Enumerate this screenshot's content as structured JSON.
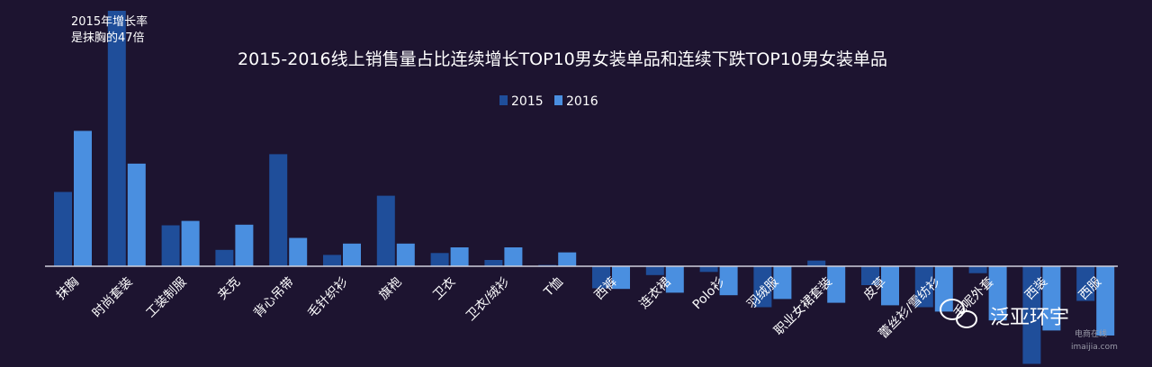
{
  "chart_data": {
    "type": "bar",
    "title": "2015-2016线上销售量占比连续增长TOP10男女装单品和连续下跌TOP10男女装单品",
    "annotation_lines": [
      "2015年增长率",
      "是抹胸的47倍"
    ],
    "legend_position": "top-center",
    "grid": false,
    "ylim": [
      -1.6,
      4.0
    ],
    "categories": [
      "抹胸",
      "时尚套装",
      "工装制服",
      "夹克",
      "背心吊带",
      "毛针织衫",
      "旗袍",
      "卫衣",
      "卫衣/绒衫",
      "T恤",
      "西裤",
      "连衣裙",
      "Polo衫",
      "羽绒服",
      "职业女裙套装",
      "皮草",
      "蕾丝衫/雪纺衫",
      "毛呢外套",
      "西装",
      "西服"
    ],
    "series": [
      {
        "name": "2015",
        "color": "#1f4e9a",
        "values": [
          1.18,
          4.1,
          0.65,
          0.26,
          1.78,
          0.18,
          1.12,
          0.21,
          0.1,
          0.02,
          -0.35,
          -0.14,
          -0.09,
          -0.65,
          0.09,
          -0.3,
          -0.65,
          -0.11,
          -1.55,
          -0.55
        ]
      },
      {
        "name": "2016",
        "color": "#4a8fe0",
        "values": [
          2.15,
          1.63,
          0.72,
          0.66,
          0.45,
          0.36,
          0.36,
          0.3,
          0.3,
          0.22,
          -0.36,
          -0.42,
          -0.46,
          -0.52,
          -0.58,
          -0.62,
          -0.72,
          -0.86,
          -1.02,
          -1.1
        ]
      }
    ]
  },
  "watermark": {
    "brand": "泛亚环宇",
    "site": "电商在线",
    "domain": "imaijia.com"
  },
  "colors": {
    "background": "#1d1430",
    "axis": "#d0d0dc",
    "text": "#ffffff"
  }
}
